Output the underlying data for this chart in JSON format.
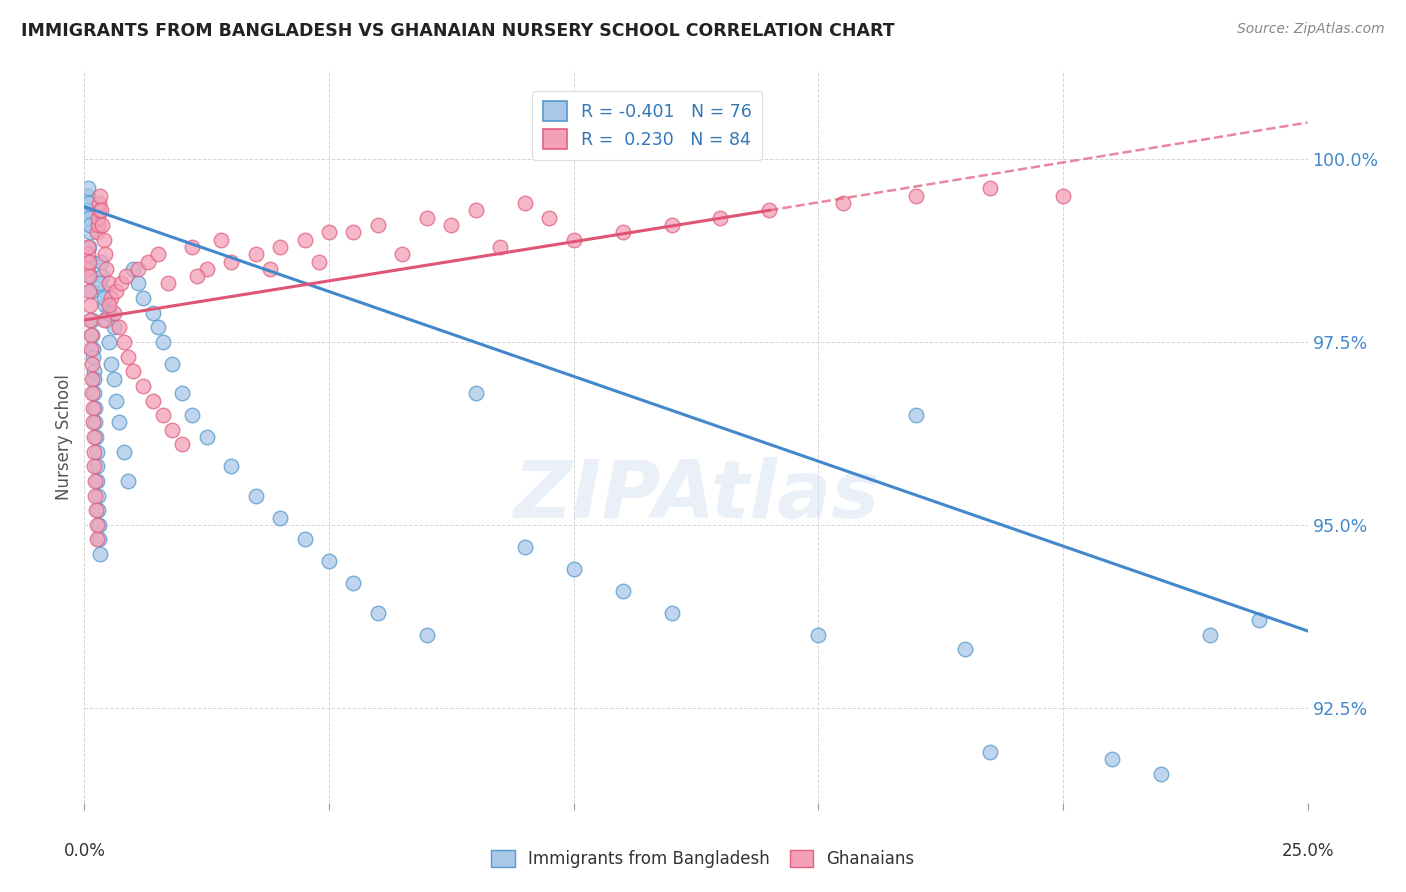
{
  "title": "IMMIGRANTS FROM BANGLADESH VS GHANAIAN NURSERY SCHOOL CORRELATION CHART",
  "source": "Source: ZipAtlas.com",
  "ylabel": "Nursery School",
  "ytick_labels": [
    "92.5%",
    "95.0%",
    "97.5%",
    "100.0%"
  ],
  "ytick_values": [
    92.5,
    95.0,
    97.5,
    100.0
  ],
  "xlim": [
    0.0,
    25.0
  ],
  "ylim": [
    91.2,
    101.2
  ],
  "color_blue": "#a8c8e8",
  "color_pink": "#f4a0b8",
  "color_blue_edge": "#5599cc",
  "color_pink_edge": "#e06080",
  "color_line_blue": "#4488cc",
  "color_line_pink": "#e05575",
  "watermark": "ZIPAtlas",
  "legend_label1": "Immigrants from Bangladesh",
  "legend_label2": "Ghanaians",
  "blue_line_x0": 0.0,
  "blue_line_y0": 99.35,
  "blue_line_x1": 25.0,
  "blue_line_y1": 93.55,
  "pink_line_x0": 0.0,
  "pink_line_y0": 97.8,
  "pink_line_x1": 25.0,
  "pink_line_y1": 100.5,
  "pink_dash_x0": 14.0,
  "pink_dash_y0": 99.3,
  "pink_dash_x1": 25.0,
  "pink_dash_y1": 100.5,
  "blue_x": [
    0.05,
    0.07,
    0.08,
    0.09,
    0.1,
    0.1,
    0.11,
    0.12,
    0.13,
    0.14,
    0.15,
    0.15,
    0.16,
    0.17,
    0.18,
    0.19,
    0.2,
    0.2,
    0.21,
    0.22,
    0.23,
    0.25,
    0.25,
    0.26,
    0.27,
    0.28,
    0.3,
    0.3,
    0.32,
    0.35,
    0.37,
    0.4,
    0.42,
    0.45,
    0.5,
    0.55,
    0.6,
    0.65,
    0.7,
    0.8,
    0.9,
    1.0,
    1.1,
    1.2,
    1.4,
    1.5,
    1.6,
    1.8,
    2.0,
    2.2,
    2.5,
    3.0,
    3.5,
    4.0,
    4.5,
    5.0,
    5.5,
    6.0,
    7.0,
    8.0,
    9.0,
    10.0,
    11.0,
    12.0,
    15.0,
    18.0,
    21.0,
    22.0,
    23.0,
    24.0,
    17.0,
    18.5,
    0.3,
    0.4,
    0.5,
    0.6
  ],
  "blue_y": [
    99.3,
    99.5,
    99.6,
    99.4,
    99.2,
    98.8,
    99.0,
    99.1,
    98.6,
    98.4,
    98.2,
    97.8,
    97.6,
    97.4,
    97.3,
    97.1,
    97.0,
    96.8,
    96.6,
    96.4,
    96.2,
    96.0,
    95.8,
    95.6,
    95.4,
    95.2,
    95.0,
    94.8,
    94.6,
    98.6,
    98.4,
    98.2,
    98.0,
    97.8,
    97.5,
    97.2,
    97.0,
    96.7,
    96.4,
    96.0,
    95.6,
    98.5,
    98.3,
    98.1,
    97.9,
    97.7,
    97.5,
    97.2,
    96.8,
    96.5,
    96.2,
    95.8,
    95.4,
    95.1,
    94.8,
    94.5,
    94.2,
    93.8,
    93.5,
    96.8,
    94.7,
    94.4,
    94.1,
    93.8,
    93.5,
    93.3,
    91.8,
    91.6,
    93.5,
    93.7,
    96.5,
    91.9,
    98.3,
    98.1,
    97.9,
    97.7
  ],
  "pink_x": [
    0.05,
    0.07,
    0.08,
    0.09,
    0.1,
    0.1,
    0.11,
    0.12,
    0.13,
    0.14,
    0.15,
    0.15,
    0.16,
    0.17,
    0.18,
    0.19,
    0.2,
    0.2,
    0.21,
    0.22,
    0.23,
    0.25,
    0.25,
    0.26,
    0.27,
    0.28,
    0.3,
    0.3,
    0.32,
    0.35,
    0.37,
    0.4,
    0.42,
    0.45,
    0.5,
    0.55,
    0.6,
    0.7,
    0.8,
    0.9,
    1.0,
    1.2,
    1.4,
    1.6,
    1.8,
    2.0,
    2.5,
    3.0,
    3.5,
    4.0,
    4.5,
    5.0,
    6.0,
    7.0,
    8.0,
    9.0,
    0.65,
    0.75,
    0.85,
    1.1,
    1.3,
    1.5,
    2.2,
    2.8,
    5.5,
    7.5,
    9.5,
    0.5,
    0.4,
    1.7,
    2.3,
    3.8,
    4.8,
    6.5,
    8.5,
    10.0,
    11.0,
    12.0,
    13.0,
    14.0,
    15.5,
    17.0,
    18.5,
    20.0
  ],
  "pink_y": [
    98.5,
    98.7,
    98.8,
    98.6,
    98.4,
    98.2,
    98.0,
    97.8,
    97.6,
    97.4,
    97.2,
    97.0,
    96.8,
    96.6,
    96.4,
    96.2,
    96.0,
    95.8,
    95.6,
    95.4,
    95.2,
    95.0,
    94.8,
    99.0,
    99.1,
    99.2,
    99.3,
    99.4,
    99.5,
    99.3,
    99.1,
    98.9,
    98.7,
    98.5,
    98.3,
    98.1,
    97.9,
    97.7,
    97.5,
    97.3,
    97.1,
    96.9,
    96.7,
    96.5,
    96.3,
    96.1,
    98.5,
    98.6,
    98.7,
    98.8,
    98.9,
    99.0,
    99.1,
    99.2,
    99.3,
    99.4,
    98.2,
    98.3,
    98.4,
    98.5,
    98.6,
    98.7,
    98.8,
    98.9,
    99.0,
    99.1,
    99.2,
    98.0,
    97.8,
    98.3,
    98.4,
    98.5,
    98.6,
    98.7,
    98.8,
    98.9,
    99.0,
    99.1,
    99.2,
    99.3,
    99.4,
    99.5,
    99.6,
    99.5
  ]
}
